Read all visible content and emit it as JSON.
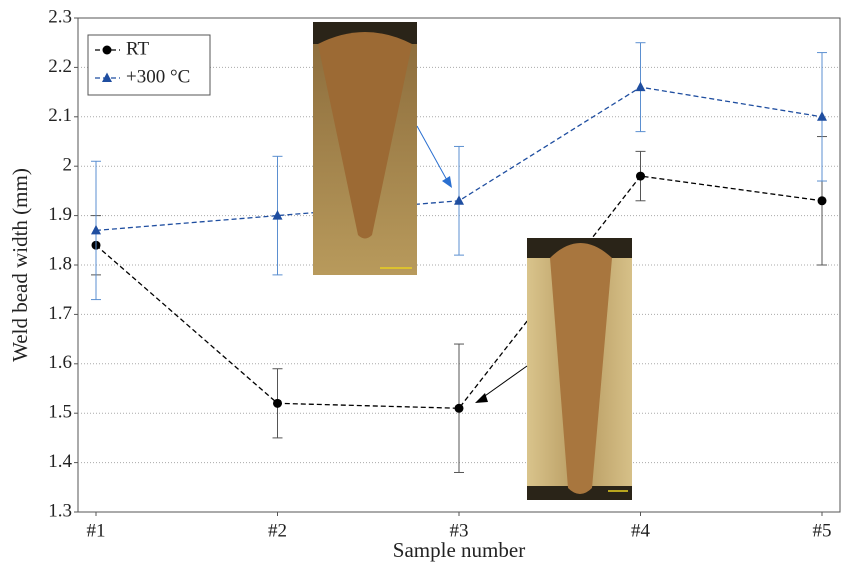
{
  "chart_data": {
    "type": "line",
    "x_label": "Sample number",
    "y_label": "Weld bead width (mm)",
    "categories": [
      "#1",
      "#2",
      "#3",
      "#4",
      "#5"
    ],
    "series": [
      {
        "name": "RT",
        "color": "#000000",
        "marker": "circle",
        "values": [
          1.84,
          1.52,
          1.51,
          1.98,
          1.93
        ],
        "errors": [
          0.06,
          0.07,
          0.13,
          0.05,
          0.13
        ]
      },
      {
        "name": "+300 °C",
        "color": "#1f4ea0",
        "marker": "triangle",
        "values": [
          1.87,
          1.9,
          1.93,
          2.16,
          2.1
        ],
        "errors": [
          0.14,
          0.12,
          0.11,
          0.09,
          0.13
        ]
      }
    ],
    "ylim": [
      1.3,
      2.3
    ],
    "yticks": [
      1.3,
      1.4,
      1.5,
      1.6,
      1.7,
      1.8,
      1.9,
      2,
      2.1,
      2.2,
      2.3
    ],
    "grid": true,
    "legend": "upper left"
  }
}
